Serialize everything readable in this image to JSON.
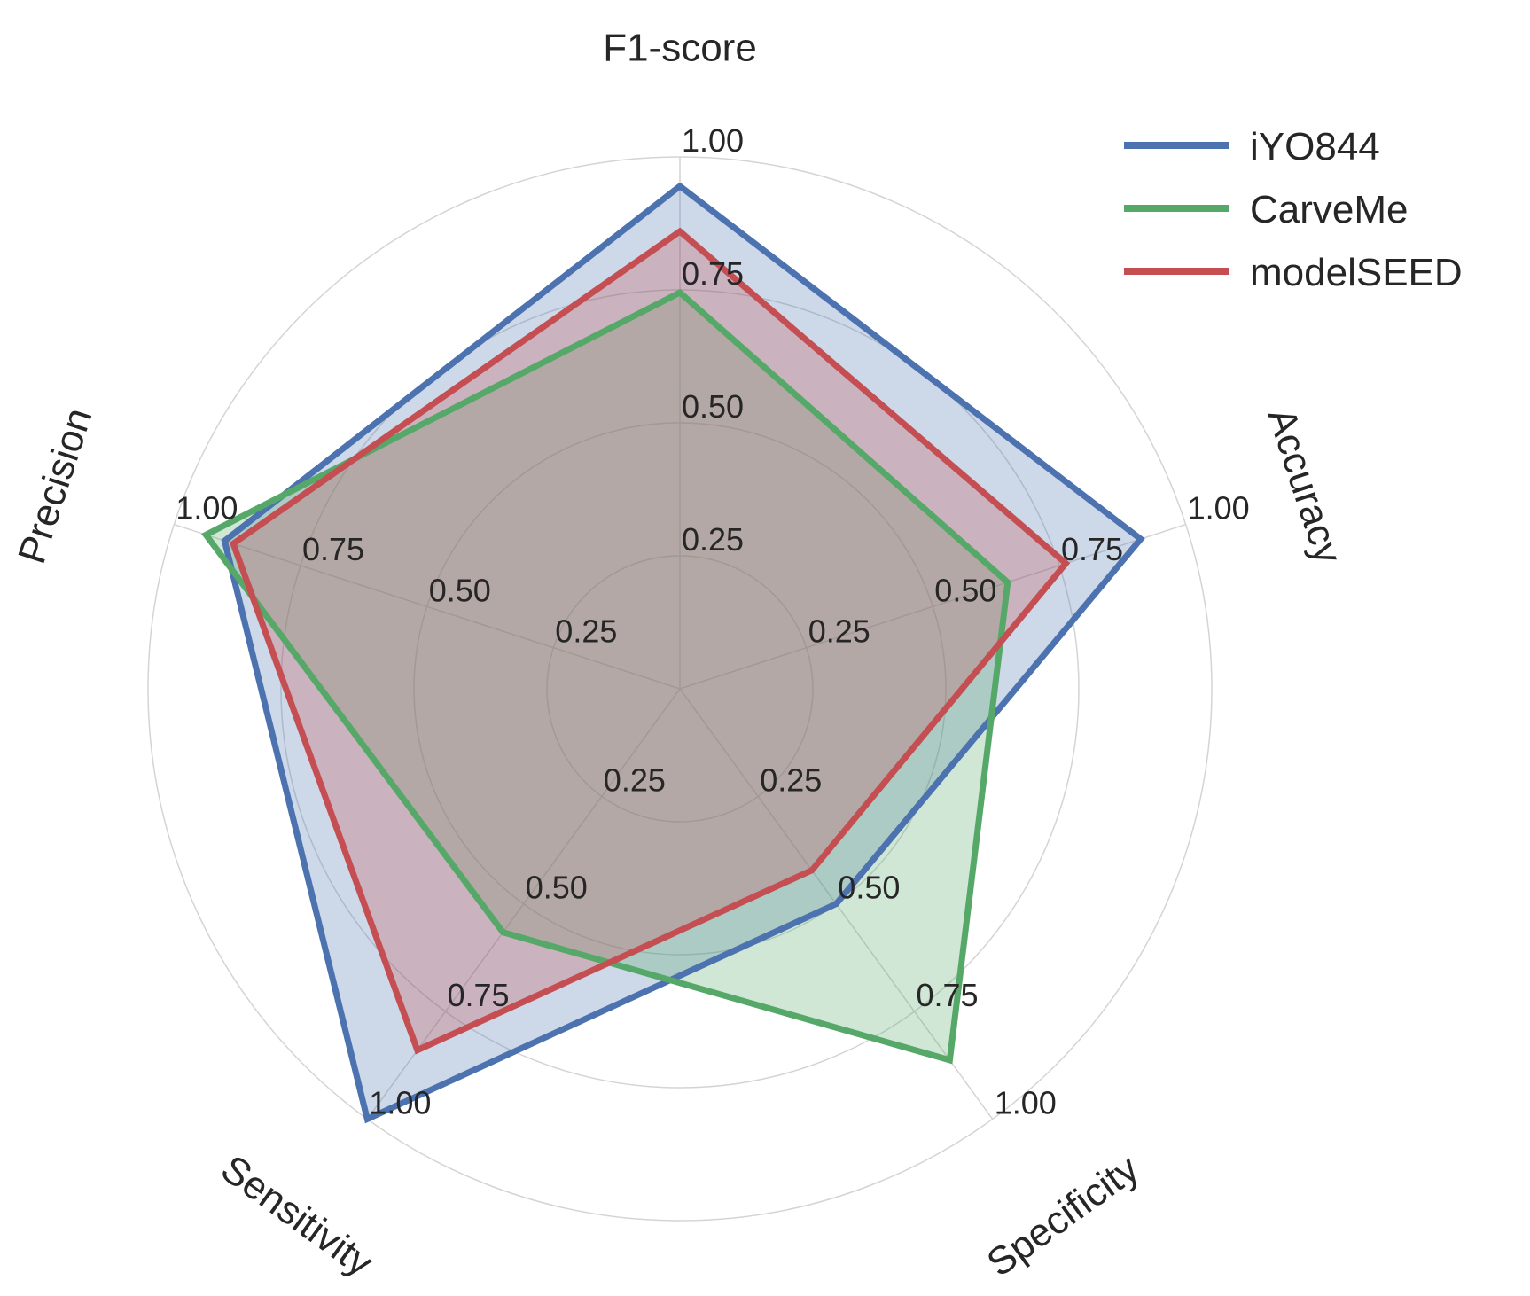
{
  "chart_data": {
    "type": "radar",
    "axes": [
      "F1-score",
      "Accuracy",
      "Specificity",
      "Sensitivity",
      "Precision"
    ],
    "tick_labels": [
      "0.25",
      "0.50",
      "0.75",
      "1.00"
    ],
    "ticks": [
      0.25,
      0.5,
      0.75,
      1.0
    ],
    "range": [
      0,
      1
    ],
    "grid": true,
    "legend_position": "top-right",
    "series": [
      {
        "name": "iYO844",
        "color": "#4c72b0",
        "values": [
          0.945,
          0.911,
          0.5,
          1.0,
          0.9
        ]
      },
      {
        "name": "CarveMe",
        "color": "#55a868",
        "values": [
          0.745,
          0.648,
          0.863,
          0.566,
          0.937
        ]
      },
      {
        "name": "modelSEED",
        "color": "#c44e52",
        "values": [
          0.86,
          0.763,
          0.422,
          0.84,
          0.883
        ]
      }
    ]
  }
}
